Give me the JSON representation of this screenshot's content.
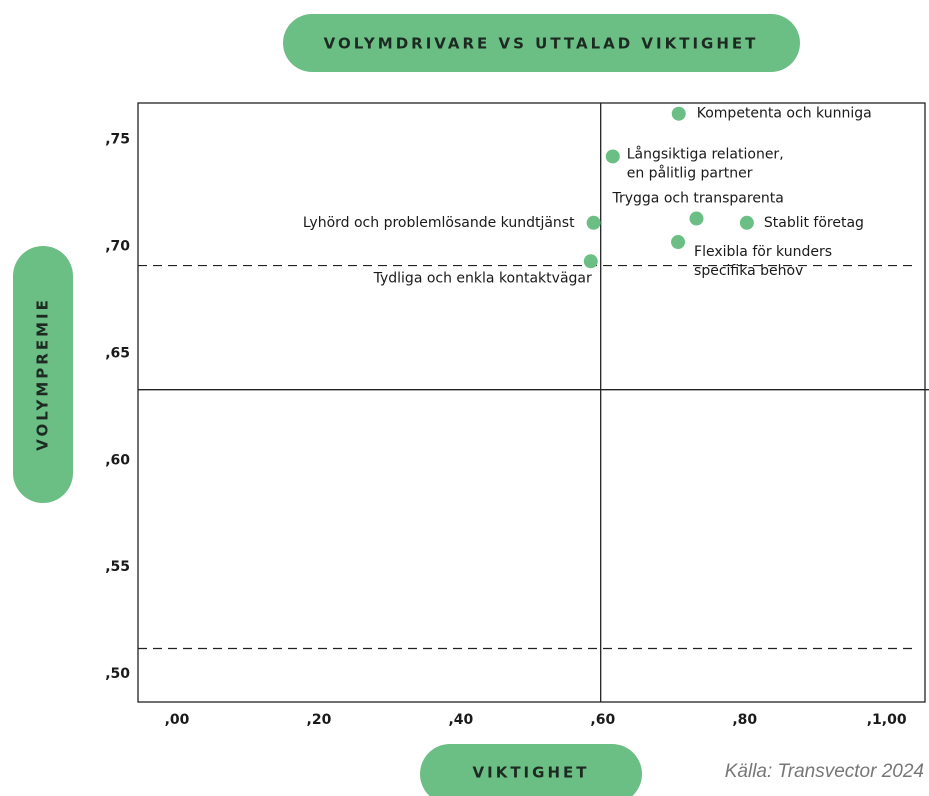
{
  "chart_data": {
    "type": "scatter",
    "title": "VOLYMDRIVARE VS UTTALAD VIKTIGHET",
    "x_label": "VIKTIGHET",
    "y_label": "VOLYMPREMIE",
    "source": "Källa: Transvector 2024",
    "color": "#6cbf84",
    "xlim": [
      -0.055,
      1.054
    ],
    "ylim": [
      0.487,
      0.767
    ],
    "xticks": [
      {
        "value": 0,
        "label": ",00"
      },
      {
        "value": 0.2,
        "label": ",20"
      },
      {
        "value": 0.4,
        "label": ",40"
      },
      {
        "value": 0.6,
        "label": ",60"
      },
      {
        "value": 0.8,
        "label": ",80"
      },
      {
        "value": 1.0,
        "label": ",1,00"
      }
    ],
    "yticks": [
      {
        "value": 0.5,
        "label": ",50"
      },
      {
        "value": 0.55,
        "label": ",55"
      },
      {
        "value": 0.6,
        "label": ",60"
      },
      {
        "value": 0.65,
        "label": ",65"
      },
      {
        "value": 0.7,
        "label": ",70"
      },
      {
        "value": 0.75,
        "label": ",75"
      }
    ],
    "reference_lines": {
      "x": [
        0.597
      ],
      "y": [
        0.633
      ],
      "dashed_y": [
        0.691,
        0.512
      ]
    },
    "points": [
      {
        "label": [
          "Kompetenta och kunniga"
        ],
        "x": 0.707,
        "y": 0.762
      },
      {
        "label": [
          "Långsiktiga relationer,",
          "en pålitlig partner"
        ],
        "x": 0.614,
        "y": 0.742
      },
      {
        "label": [
          "Lyhörd och problemlösande kundtjänst"
        ],
        "x": 0.587,
        "y": 0.711
      },
      {
        "label": [
          "Tydliga och enkla kontaktvägar"
        ],
        "x": 0.583,
        "y": 0.693
      },
      {
        "label": [
          "Trygga och transparenta"
        ],
        "x": 0.732,
        "y": 0.713
      },
      {
        "label": [
          "Stablit företag"
        ],
        "x": 0.803,
        "y": 0.711
      },
      {
        "label": [
          "Flexibla för kunders",
          "specifika behov"
        ],
        "x": 0.706,
        "y": 0.702
      }
    ]
  }
}
